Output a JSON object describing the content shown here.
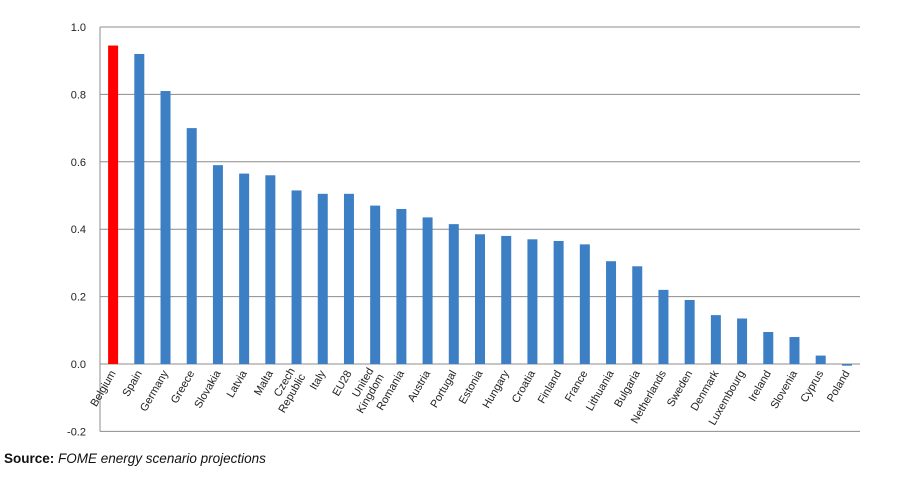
{
  "chart_data": {
    "type": "bar",
    "title": "",
    "xlabel": "",
    "ylabel": "",
    "ylim": [
      -0.2,
      1.0
    ],
    "yticks": [
      "1.0",
      "0.8",
      "0.6",
      "0.4",
      "0.2",
      "0.0",
      "-0.2"
    ],
    "yticks_values": [
      1.0,
      0.8,
      0.6,
      0.4,
      0.2,
      0.0,
      -0.2
    ],
    "grid": true,
    "categories": [
      "Belgium",
      "Spain",
      "Germany",
      "Greece",
      "Slovakia",
      "Latvia",
      "Malta",
      "Czech Republic",
      "Italy",
      "EU28",
      "United Kingdom",
      "Romania",
      "Austria",
      "Portugal",
      "Estonia",
      "Hungary",
      "Croatia",
      "Finland",
      "France",
      "Lithuania",
      "Bulgaria",
      "Netherlands",
      "Sweden",
      "Denmark",
      "Luxembourg",
      "Ireland",
      "Slovenia",
      "Cyprus",
      "Poland"
    ],
    "values": [
      0.945,
      0.92,
      0.81,
      0.7,
      0.59,
      0.565,
      0.56,
      0.515,
      0.505,
      0.505,
      0.47,
      0.46,
      0.435,
      0.415,
      0.385,
      0.38,
      0.37,
      0.365,
      0.355,
      0.305,
      0.29,
      0.22,
      0.19,
      0.145,
      0.135,
      0.095,
      0.08,
      0.025,
      -0.005
    ],
    "colors": {
      "highlight": "#ff0000",
      "default": "#3d7fc4",
      "grid": "#8c8c8c"
    },
    "highlight_index": 0
  },
  "footer": {
    "source_label": "Source:",
    "source_text": "FOME energy scenario projections"
  }
}
